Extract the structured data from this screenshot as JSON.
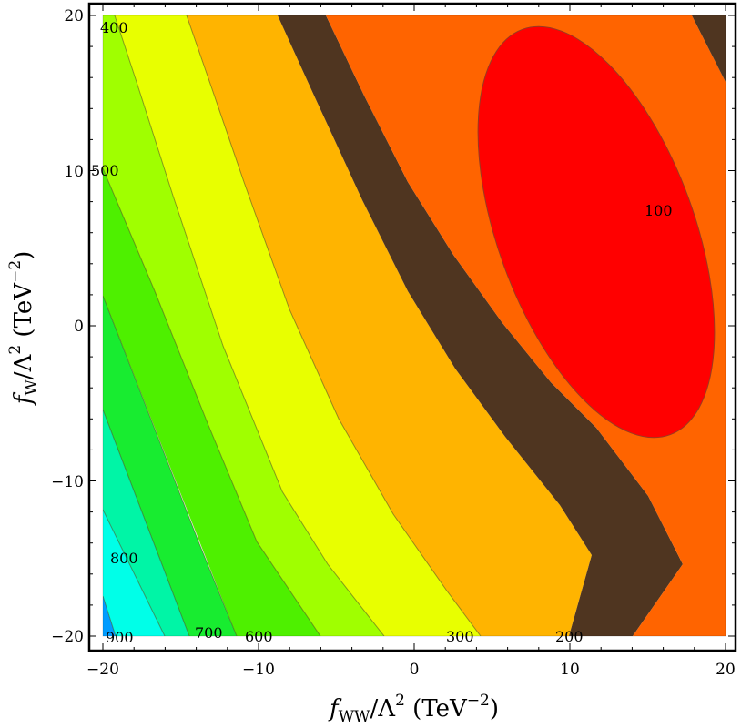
{
  "chart_data": {
    "type": "contour",
    "xlabel": "f_WW/Λ² (TeV⁻²)",
    "ylabel": "f_W/Λ² (TeV⁻²)",
    "xlim": [
      -20,
      20
    ],
    "ylim": [
      -20,
      20
    ],
    "x_ticks": [
      "−20",
      "−10",
      "0",
      "10",
      "20"
    ],
    "y_ticks": [
      "20",
      "10",
      "0",
      "−10",
      "−20"
    ],
    "contour_levels": [
      100,
      200,
      300,
      400,
      500,
      600,
      700,
      800,
      900
    ],
    "contour_labels": [
      "100",
      "200",
      "300",
      "400",
      "500",
      "600",
      "700",
      "800",
      "900"
    ],
    "band_colors": [
      "#ff0000",
      "#ff6400",
      "#4f3520",
      "#ffb400",
      "#e8ff00",
      "#a0ff00",
      "#4ef000",
      "#18ec30",
      "#00f5a6",
      "#00ffe8",
      "#009cff"
    ],
    "minimum_region": {
      "x_range": [
        6.5,
        18.5
      ],
      "y_range": [
        -6.5,
        18.5
      ]
    }
  },
  "axes": {
    "x_title_main": "f",
    "x_title_sub": "WW",
    "x_title_rest": "/Λ",
    "x_title_sup": "2",
    "x_title_units": " (TeV",
    "x_title_units_sup": "−2",
    "x_title_close": ")",
    "y_title_main": "f",
    "y_title_sub": "W",
    "y_title_rest": "/Λ",
    "y_title_sup": "2",
    "y_title_units": " (TeV",
    "y_title_units_sup": "−2",
    "y_title_close": ")"
  }
}
